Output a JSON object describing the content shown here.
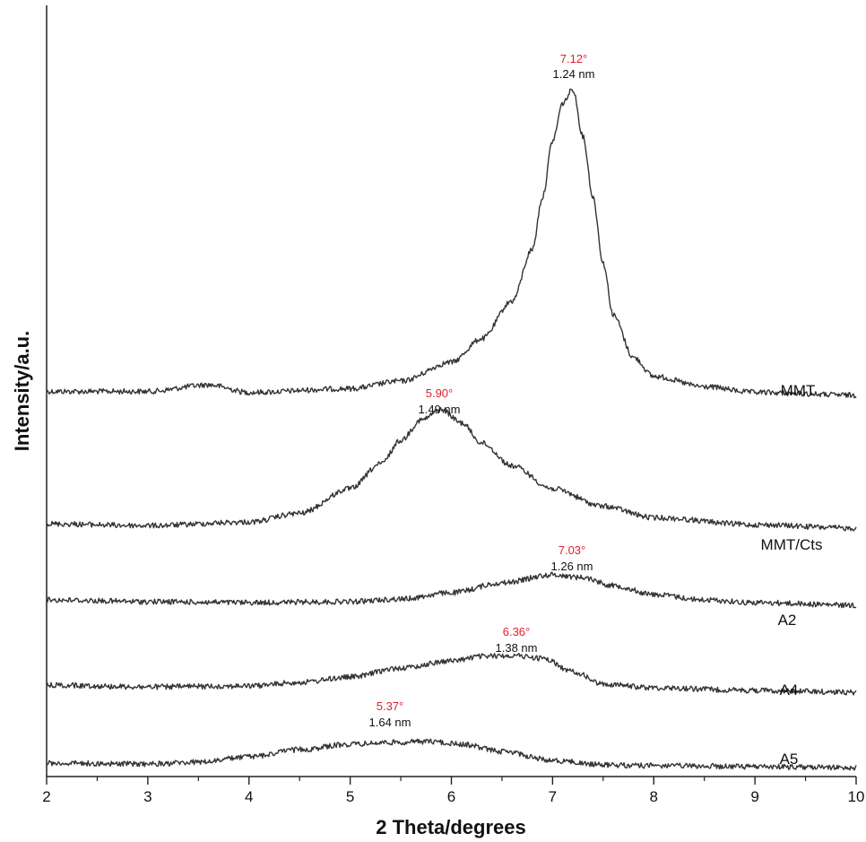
{
  "chart_data": {
    "type": "line",
    "title": "",
    "xlabel": "2 Theta/degrees",
    "ylabel": "Intensity/a.u.",
    "xlim": [
      2,
      10
    ],
    "x_ticks": [
      2,
      3,
      4,
      5,
      6,
      7,
      8,
      9,
      10
    ],
    "y_ticks": [],
    "grid": false,
    "legend": "none",
    "line_color": "#333333",
    "peak_angle_color": "#e0202a",
    "series": [
      {
        "name": "MMT",
        "peak": {
          "angle_label": "7.12°",
          "d_label": "1.24 nm"
        },
        "x": [
          2,
          3,
          3.6,
          4,
          5,
          5.5,
          6,
          6.3,
          6.6,
          6.8,
          6.9,
          7.0,
          7.1,
          7.2,
          7.3,
          7.4,
          7.5,
          7.6,
          7.8,
          8,
          8.5,
          9,
          10
        ],
        "y": [
          9,
          9,
          16,
          8,
          12,
          20,
          40,
          65,
          105,
          160,
          215,
          275,
          315,
          330,
          280,
          215,
          145,
          90,
          45,
          25,
          14,
          8,
          5
        ]
      },
      {
        "name": "MMT/Cts",
        "peak": {
          "angle_label": "5.90°",
          "d_label": "1.49 nm"
        },
        "x": [
          2,
          3,
          4,
          4.5,
          5,
          5.3,
          5.5,
          5.7,
          5.9,
          6.1,
          6.3,
          6.6,
          7,
          7.5,
          8,
          9,
          10
        ],
        "y": [
          10,
          8,
          12,
          22,
          50,
          78,
          105,
          128,
          140,
          125,
          102,
          76,
          50,
          30,
          17,
          9,
          5
        ]
      },
      {
        "name": "A2",
        "peak": {
          "angle_label": "7.03°",
          "d_label": "1.26 nm"
        },
        "x": [
          2,
          3,
          4,
          5,
          5.5,
          6,
          6.5,
          7,
          7.3,
          7.6,
          8,
          8.5,
          9,
          10
        ],
        "y": [
          12,
          10,
          9,
          10,
          13,
          20,
          31,
          40,
          37,
          28,
          18,
          12,
          9,
          6
        ]
      },
      {
        "name": "A4",
        "peak": {
          "angle_label": "6.36°",
          "d_label": "1.38 nm"
        },
        "x": [
          2,
          3,
          4,
          4.5,
          5,
          5.5,
          6,
          6.3,
          6.6,
          6.9,
          7.2,
          7.5,
          8,
          9,
          10
        ],
        "y": [
          13,
          11,
          12,
          16,
          22,
          32,
          40,
          45,
          46,
          43,
          28,
          14,
          10,
          7,
          5
        ]
      },
      {
        "name": "A5",
        "peak": {
          "angle_label": "5.37°",
          "d_label": "1.64 nm"
        },
        "x": [
          2,
          3,
          3.5,
          4,
          4.5,
          5,
          5.4,
          5.8,
          6.1,
          6.5,
          7,
          7.5,
          8,
          9,
          10
        ],
        "y": [
          5,
          4,
          6,
          12,
          20,
          26,
          28,
          29,
          26,
          18,
          8,
          3,
          2,
          1,
          0
        ]
      }
    ]
  }
}
